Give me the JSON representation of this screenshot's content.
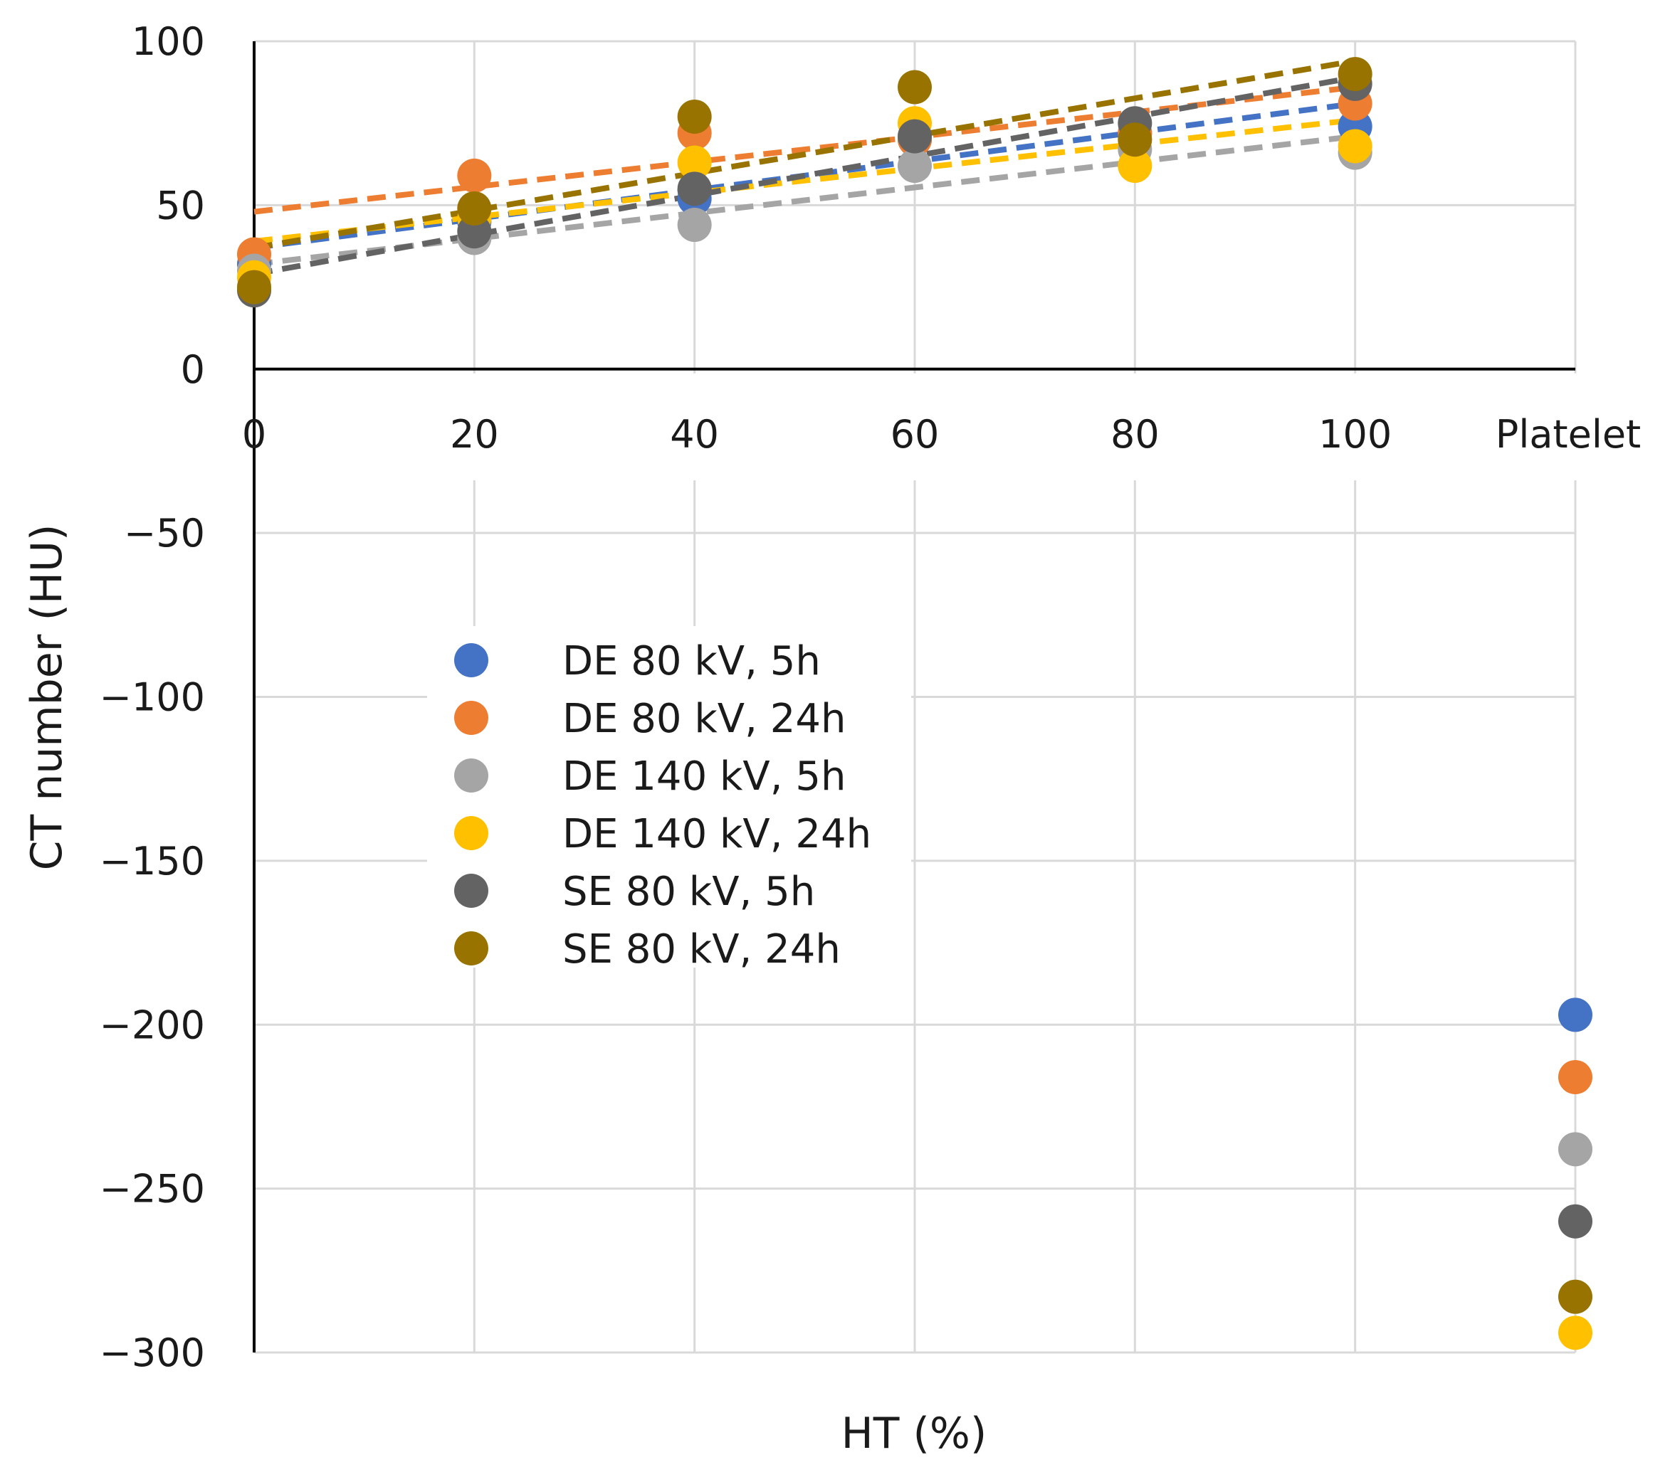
{
  "chart_data": {
    "type": "scatter",
    "title": "",
    "xlabel": "HT (%)",
    "ylabel": "CT number (HU)",
    "xlim": [
      0,
      120
    ],
    "ylim": [
      -300,
      100
    ],
    "x_ticks": [
      0,
      20,
      40,
      60,
      80,
      100
    ],
    "x_tick_labels": [
      "0",
      "20",
      "40",
      "60",
      "80",
      "100"
    ],
    "extra_category_label": "Platelet",
    "y_ticks": [
      100,
      50,
      0,
      -50,
      -100,
      -150,
      -200,
      -250,
      -300
    ],
    "y_tick_labels": [
      "100",
      "50",
      "0",
      "−50",
      "−100",
      "−150",
      "−200",
      "−250",
      "−300"
    ],
    "grid": true,
    "trendlines": "linear, dashed",
    "legend_position": "center-left",
    "series": [
      {
        "name": "DE 80 kV, 5h",
        "color": "#4472c4",
        "x": [
          0,
          20,
          40,
          60,
          80,
          100
        ],
        "y": [
          32,
          45,
          52,
          70,
          72,
          74
        ],
        "trend": [
          37,
          81
        ],
        "platelet": -197
      },
      {
        "name": "DE 80 kV, 24h",
        "color": "#ed7d31",
        "x": [
          0,
          20,
          40,
          60,
          80,
          100
        ],
        "y": [
          35,
          59,
          72,
          70,
          72,
          81
        ],
        "trend": [
          48,
          86
        ],
        "platelet": -216
      },
      {
        "name": "DE 140 kV, 5h",
        "color": "#a5a5a5",
        "x": [
          0,
          20,
          40,
          60,
          80,
          100
        ],
        "y": [
          30,
          40,
          44,
          62,
          67,
          66
        ],
        "trend": [
          32,
          71
        ],
        "platelet": -238
      },
      {
        "name": "DE 140 kV, 24h",
        "color": "#ffc000",
        "x": [
          0,
          20,
          40,
          60,
          80,
          100
        ],
        "y": [
          28,
          46,
          63,
          75,
          62,
          68
        ],
        "trend": [
          39,
          76
        ],
        "platelet": -294
      },
      {
        "name": "SE 80 kV, 5h",
        "color": "#636363",
        "x": [
          0,
          20,
          40,
          60,
          80,
          100
        ],
        "y": [
          24,
          42,
          55,
          71,
          75,
          87
        ],
        "trend": [
          29,
          89
        ],
        "platelet": -260
      },
      {
        "name": "SE 80 kV, 24h",
        "color": "#997300",
        "x": [
          0,
          20,
          40,
          60,
          80,
          100
        ],
        "y": [
          25,
          49,
          77,
          86,
          70,
          90
        ],
        "trend": [
          37,
          94
        ],
        "platelet": -283
      }
    ]
  }
}
